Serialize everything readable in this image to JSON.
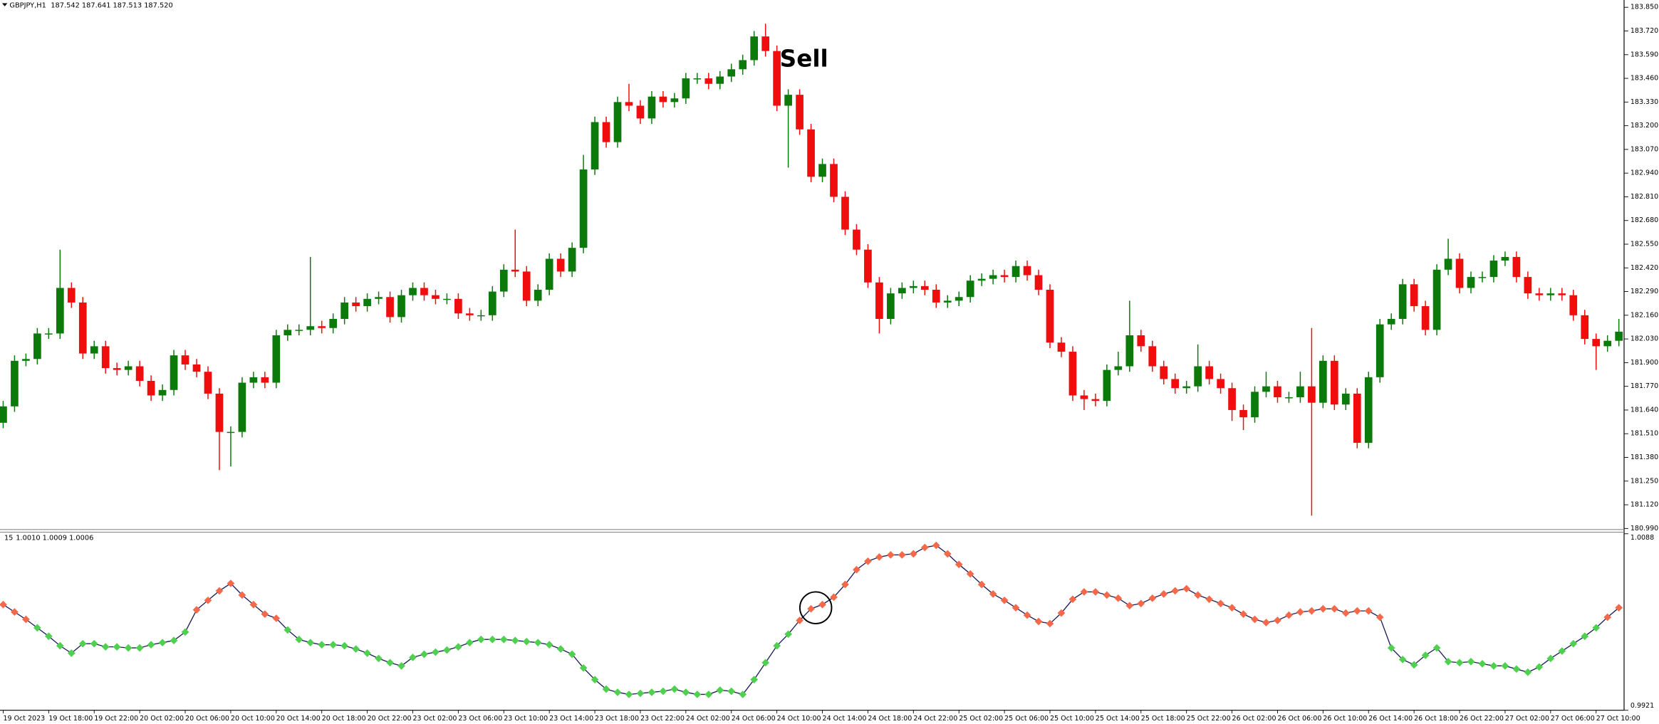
{
  "chart_data": [
    {
      "type": "candlestick",
      "title": "GBPJPY,H1",
      "subtitle": "187.542 187.641 187.513 187.520",
      "annotation": "Sell",
      "up_color": "#0b7a0b",
      "down_color": "#f00d0d",
      "ylim": [
        180.99,
        183.89
      ],
      "yticks": [
        {
          "value": 183.85,
          "label": "183.850"
        },
        {
          "value": 183.72,
          "label": "183.720"
        },
        {
          "value": 183.59,
          "label": "183.590"
        },
        {
          "value": 183.46,
          "label": "183.460"
        },
        {
          "value": 183.33,
          "label": "183.330"
        },
        {
          "value": 183.2,
          "label": "183.200"
        },
        {
          "value": 183.07,
          "label": "183.070"
        },
        {
          "value": 182.94,
          "label": "182.940"
        },
        {
          "value": 182.81,
          "label": "182.810"
        },
        {
          "value": 182.68,
          "label": "182.680"
        },
        {
          "value": 182.55,
          "label": "182.550"
        },
        {
          "value": 182.42,
          "label": "182.420"
        },
        {
          "value": 182.29,
          "label": "182.290"
        },
        {
          "value": 182.16,
          "label": "182.160"
        },
        {
          "value": 182.03,
          "label": "182.030"
        },
        {
          "value": 181.9,
          "label": "181.900"
        },
        {
          "value": 181.77,
          "label": "181.770"
        },
        {
          "value": 181.64,
          "label": "181.640"
        },
        {
          "value": 181.51,
          "label": "181.510"
        },
        {
          "value": 181.38,
          "label": "181.380"
        },
        {
          "value": 181.25,
          "label": "181.250"
        },
        {
          "value": 181.12,
          "label": "181.120"
        },
        {
          "value": 180.99,
          "label": "180.990"
        }
      ],
      "xticks": [
        {
          "value": 0,
          "label": "19 Oct 2023"
        },
        {
          "value": 4,
          "label": "19 Oct 18:00"
        },
        {
          "value": 8,
          "label": "19 Oct 22:00"
        },
        {
          "value": 12,
          "label": "20 Oct 02:00"
        },
        {
          "value": 16,
          "label": "20 Oct 06:00"
        },
        {
          "value": 20,
          "label": "20 Oct 10:00"
        },
        {
          "value": 24,
          "label": "20 Oct 14:00"
        },
        {
          "value": 28,
          "label": "20 Oct 18:00"
        },
        {
          "value": 32,
          "label": "20 Oct 22:00"
        },
        {
          "value": 36,
          "label": "23 Oct 02:00"
        },
        {
          "value": 40,
          "label": "23 Oct 06:00"
        },
        {
          "value": 44,
          "label": "23 Oct 10:00"
        },
        {
          "value": 48,
          "label": "23 Oct 14:00"
        },
        {
          "value": 52,
          "label": "23 Oct 18:00"
        },
        {
          "value": 56,
          "label": "23 Oct 22:00"
        },
        {
          "value": 60,
          "label": "24 Oct 02:00"
        },
        {
          "value": 64,
          "label": "24 Oct 06:00"
        },
        {
          "value": 68,
          "label": "24 Oct 10:00"
        },
        {
          "value": 72,
          "label": "24 Oct 14:00"
        },
        {
          "value": 76,
          "label": "24 Oct 18:00"
        },
        {
          "value": 80,
          "label": "24 Oct 22:00"
        },
        {
          "value": 84,
          "label": "25 Oct 02:00"
        },
        {
          "value": 88,
          "label": "25 Oct 06:00"
        },
        {
          "value": 92,
          "label": "25 Oct 10:00"
        },
        {
          "value": 96,
          "label": "25 Oct 14:00"
        },
        {
          "value": 100,
          "label": "25 Oct 18:00"
        },
        {
          "value": 104,
          "label": "25 Oct 22:00"
        },
        {
          "value": 108,
          "label": "26 Oct 02:00"
        },
        {
          "value": 112,
          "label": "26 Oct 06:00"
        },
        {
          "value": 116,
          "label": "26 Oct 10:00"
        },
        {
          "value": 120,
          "label": "26 Oct 14:00"
        },
        {
          "value": 124,
          "label": "26 Oct 18:00"
        },
        {
          "value": 128,
          "label": "26 Oct 22:00"
        },
        {
          "value": 132,
          "label": "27 Oct 02:00"
        },
        {
          "value": 136,
          "label": "27 Oct 06:00"
        },
        {
          "value": 140,
          "label": "27 Oct 10:00"
        }
      ],
      "open": [
        181.57,
        181.66,
        181.91,
        181.92,
        182.06,
        182.06,
        182.31,
        182.23,
        181.95,
        181.99,
        181.87,
        181.86,
        181.88,
        181.8,
        181.72,
        181.75,
        181.94,
        181.89,
        181.85,
        181.73,
        181.52,
        181.52,
        181.79,
        181.82,
        181.79,
        182.05,
        182.08,
        182.08,
        182.1,
        182.09,
        182.14,
        182.23,
        182.21,
        182.25,
        182.26,
        182.15,
        182.27,
        182.31,
        182.27,
        182.25,
        182.25,
        182.17,
        182.16,
        182.16,
        182.29,
        182.41,
        182.4,
        182.24,
        182.3,
        182.47,
        182.4,
        182.53,
        182.96,
        183.22,
        183.11,
        183.33,
        183.31,
        183.24,
        183.36,
        183.33,
        183.35,
        183.46,
        183.46,
        183.43,
        183.47,
        183.51,
        183.56,
        183.69,
        183.61,
        183.31,
        183.37,
        183.18,
        182.92,
        182.99,
        182.81,
        182.63,
        182.52,
        182.34,
        182.14,
        182.28,
        182.31,
        182.32,
        182.3,
        182.23,
        182.24,
        182.26,
        182.35,
        182.36,
        182.38,
        182.37,
        182.43,
        182.38,
        182.3,
        182.01,
        181.96,
        181.72,
        181.7,
        181.69,
        181.86,
        181.88,
        182.05,
        181.99,
        181.88,
        181.81,
        181.76,
        181.77,
        181.88,
        181.81,
        181.76,
        181.64,
        181.6,
        181.74,
        181.77,
        181.71,
        181.71,
        181.77,
        181.68,
        181.91,
        181.67,
        181.73,
        181.46,
        181.82,
        182.11,
        182.14,
        182.33,
        182.21,
        182.08,
        182.41,
        182.47,
        182.31,
        182.37,
        182.37,
        182.46,
        182.48,
        182.37,
        182.28,
        182.27,
        182.28,
        182.27,
        182.16,
        182.03,
        181.99,
        182.02
      ],
      "high": [
        181.69,
        181.94,
        181.95,
        182.09,
        182.09,
        182.52,
        182.34,
        182.26,
        182.02,
        182.02,
        181.9,
        181.91,
        181.91,
        181.83,
        181.78,
        181.97,
        181.97,
        181.92,
        181.88,
        181.76,
        181.55,
        181.82,
        181.85,
        181.85,
        182.08,
        182.11,
        182.11,
        182.48,
        182.13,
        182.17,
        182.26,
        182.26,
        182.28,
        182.29,
        182.29,
        182.3,
        182.34,
        182.34,
        182.3,
        182.28,
        182.28,
        182.2,
        182.19,
        182.32,
        182.44,
        182.63,
        182.43,
        182.33,
        182.5,
        182.5,
        182.56,
        183.04,
        183.25,
        183.25,
        183.36,
        183.43,
        183.34,
        183.39,
        183.39,
        183.38,
        183.49,
        183.49,
        183.49,
        183.5,
        183.54,
        183.59,
        183.72,
        183.76,
        183.64,
        183.4,
        183.4,
        183.21,
        183.02,
        183.02,
        182.84,
        182.66,
        182.55,
        182.37,
        182.31,
        182.34,
        182.35,
        182.35,
        182.33,
        182.27,
        182.29,
        182.38,
        182.39,
        182.41,
        182.41,
        182.46,
        182.46,
        182.41,
        182.33,
        182.04,
        181.99,
        181.75,
        181.73,
        181.89,
        181.96,
        182.24,
        182.08,
        182.02,
        181.91,
        181.84,
        181.8,
        182.0,
        181.91,
        181.84,
        181.79,
        181.67,
        181.77,
        181.85,
        181.8,
        181.74,
        181.85,
        182.09,
        181.94,
        181.94,
        181.76,
        181.76,
        181.85,
        182.14,
        182.17,
        182.36,
        182.36,
        182.24,
        182.44,
        182.58,
        182.5,
        182.4,
        182.4,
        182.49,
        182.51,
        182.51,
        182.4,
        182.31,
        182.31,
        182.31,
        182.3,
        182.19,
        182.06,
        182.05,
        182.14
      ],
      "low": [
        181.54,
        181.63,
        181.88,
        181.89,
        182.03,
        182.03,
        182.2,
        181.92,
        181.92,
        181.84,
        181.83,
        181.83,
        181.77,
        181.69,
        181.69,
        181.72,
        181.86,
        181.82,
        181.7,
        181.31,
        181.33,
        181.49,
        181.76,
        181.76,
        181.76,
        182.02,
        182.05,
        182.05,
        182.06,
        182.06,
        182.11,
        182.18,
        182.18,
        182.22,
        182.12,
        182.12,
        182.24,
        182.24,
        182.22,
        182.22,
        182.14,
        182.13,
        182.13,
        182.13,
        182.26,
        182.37,
        182.21,
        182.21,
        182.27,
        182.37,
        182.37,
        182.5,
        182.93,
        183.08,
        183.08,
        183.28,
        183.21,
        183.21,
        183.3,
        183.3,
        183.32,
        183.43,
        183.4,
        183.4,
        183.44,
        183.48,
        183.53,
        183.58,
        183.28,
        182.97,
        183.15,
        182.89,
        182.89,
        182.78,
        182.6,
        182.49,
        182.31,
        182.06,
        182.11,
        182.25,
        182.28,
        182.27,
        182.2,
        182.2,
        182.21,
        182.23,
        182.32,
        182.33,
        182.34,
        182.34,
        182.35,
        182.27,
        181.98,
        181.93,
        181.69,
        181.64,
        181.66,
        181.66,
        181.83,
        181.85,
        181.96,
        181.85,
        181.78,
        181.73,
        181.73,
        181.74,
        181.78,
        181.73,
        181.58,
        181.53,
        181.57,
        181.71,
        181.68,
        181.68,
        181.68,
        181.06,
        181.65,
        181.64,
        181.64,
        181.43,
        181.43,
        181.79,
        182.08,
        182.11,
        182.18,
        182.05,
        182.05,
        182.38,
        182.28,
        182.28,
        182.34,
        182.34,
        182.43,
        182.34,
        182.25,
        182.24,
        182.24,
        182.24,
        182.13,
        182.0,
        181.86,
        181.96,
        181.99
      ],
      "close": [
        181.66,
        181.91,
        181.92,
        182.06,
        182.06,
        182.31,
        182.23,
        181.95,
        181.99,
        181.87,
        181.86,
        181.88,
        181.8,
        181.72,
        181.75,
        181.94,
        181.89,
        181.85,
        181.73,
        181.52,
        181.52,
        181.79,
        181.82,
        181.79,
        182.05,
        182.08,
        182.08,
        182.1,
        182.09,
        182.14,
        182.23,
        182.21,
        182.25,
        182.26,
        182.15,
        182.27,
        182.31,
        182.27,
        182.25,
        182.25,
        182.17,
        182.16,
        182.16,
        182.29,
        182.41,
        182.4,
        182.24,
        182.3,
        182.47,
        182.4,
        182.53,
        182.96,
        183.22,
        183.11,
        183.33,
        183.31,
        183.24,
        183.36,
        183.33,
        183.35,
        183.46,
        183.46,
        183.43,
        183.47,
        183.51,
        183.56,
        183.69,
        183.61,
        183.31,
        183.37,
        183.18,
        182.92,
        182.99,
        182.81,
        182.63,
        182.52,
        182.34,
        182.14,
        182.28,
        182.31,
        182.32,
        182.3,
        182.23,
        182.24,
        182.26,
        182.35,
        182.36,
        182.38,
        182.37,
        182.43,
        182.38,
        182.3,
        182.01,
        181.96,
        181.72,
        181.7,
        181.69,
        181.86,
        181.88,
        182.05,
        181.99,
        181.88,
        181.81,
        181.76,
        181.77,
        181.88,
        181.81,
        181.76,
        181.64,
        181.6,
        181.74,
        181.77,
        181.71,
        181.71,
        181.77,
        181.68,
        181.91,
        181.67,
        181.73,
        181.46,
        181.82,
        182.11,
        182.14,
        182.33,
        182.21,
        182.08,
        182.41,
        182.47,
        182.31,
        182.37,
        182.37,
        182.46,
        182.48,
        182.37,
        182.28,
        182.27,
        182.28,
        182.27,
        182.16,
        182.03,
        181.99,
        182.02,
        182.07
      ]
    },
    {
      "type": "line",
      "title": "15",
      "subtitle": "1.0010 1.0009 1.0006",
      "ylim": [
        0.9921,
        1.0088
      ],
      "yticks": [
        1.0088,
        0.9921
      ],
      "level": 1.0,
      "above_color": "#f4694a",
      "below_color": "#4fd04f",
      "series": [
        {
          "color": "#1c1f5a",
          "values": [
            1.0021,
            1.0014,
            1.0007,
            0.9999,
            0.9991,
            0.9982,
            0.9975,
            0.9984,
            0.9984,
            0.9981,
            0.9981,
            0.998,
            0.998,
            0.9983,
            0.9985,
            0.9987,
            0.9995,
            1.0016,
            1.0025,
            1.0034,
            1.0041,
            1.003,
            1.0021,
            1.0012,
            1.0008,
            0.9997,
            0.9988,
            0.9985,
            0.9983,
            0.9983,
            0.9982,
            0.9979,
            0.9975,
            0.997,
            0.9966,
            0.9963,
            0.9971,
            0.9974,
            0.9976,
            0.9978,
            0.9981,
            0.9985,
            0.9988,
            0.9988,
            0.9988,
            0.9987,
            0.9986,
            0.9985,
            0.9983,
            0.9979,
            0.9974,
            0.9961,
            0.995,
            0.9941,
            0.9938,
            0.9936,
            0.9937,
            0.9938,
            0.9939,
            0.9941,
            0.9938,
            0.9936,
            0.9936,
            0.994,
            0.9939,
            0.9936,
            0.995,
            0.9966,
            0.9982,
            0.9993,
            1.0006,
            1.0017,
            1.0021,
            1.0028,
            1.004,
            1.0054,
            1.0062,
            1.0066,
            1.0068,
            1.0068,
            1.0069,
            1.0075,
            1.0077,
            1.0069,
            1.0059,
            1.005,
            1.004,
            1.0031,
            1.0025,
            1.0018,
            1.0011,
            1.0005,
            1.0003,
            1.0013,
            1.0026,
            1.0033,
            1.0033,
            1.003,
            1.0027,
            1.002,
            1.0022,
            1.0027,
            1.0031,
            1.0034,
            1.0036,
            1.003,
            1.0026,
            1.0022,
            1.0018,
            1.0012,
            1.0007,
            1.0004,
            1.0006,
            1.0011,
            1.0014,
            1.0015,
            1.0017,
            1.0017,
            1.0013,
            1.0015,
            1.0015,
            1.0009,
            0.998,
            0.9969,
            0.9964,
            0.9973,
            0.998,
            0.9967,
            0.9966,
            0.9967,
            0.9965,
            0.9963,
            0.9963,
            0.996,
            0.9957,
            0.9962,
            0.997,
            0.9977,
            0.9984,
            0.9991,
            0.9999,
            1.0009,
            1.0018
          ]
        }
      ]
    }
  ]
}
